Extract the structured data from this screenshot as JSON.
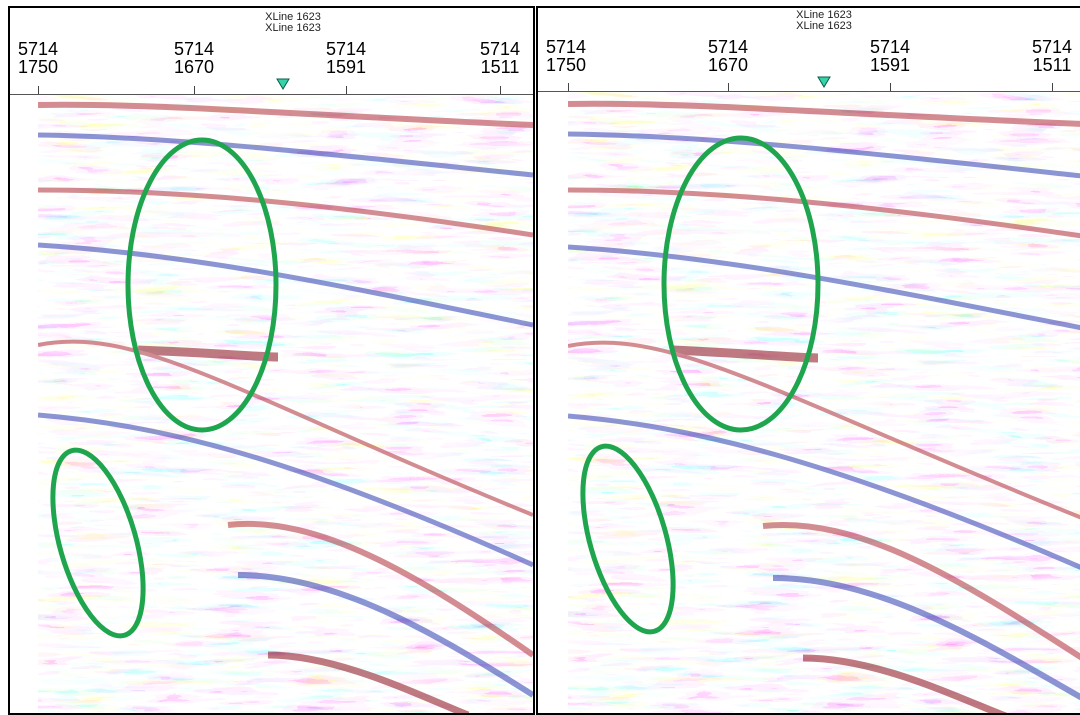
{
  "panels": [
    {
      "id": "left",
      "xline_labels": [
        "XLine 1623",
        "XLine 1623"
      ],
      "ticks": [
        {
          "top": "5714",
          "bottom": "1750"
        },
        {
          "top": "5714",
          "bottom": "1670"
        },
        {
          "top": "5714",
          "bottom": "1591"
        },
        {
          "top": "5714",
          "bottom": "1511"
        }
      ]
    },
    {
      "id": "right",
      "xline_labels": [
        "XLine 1623",
        "XLine 1623"
      ],
      "ticks": [
        {
          "top": "5714",
          "bottom": "1750"
        },
        {
          "top": "5714",
          "bottom": "1670"
        },
        {
          "top": "5714",
          "bottom": "1591"
        },
        {
          "top": "5714",
          "bottom": "1511"
        }
      ]
    }
  ],
  "colors": {
    "positive": "#b0313a",
    "negative": "#2f3fb0",
    "neutral": "#ffffff",
    "annotation": "#1fa54e",
    "marker": "#34d3a8"
  },
  "icons": {
    "position_marker": "inverted-triangle-marker",
    "annotation": "ellipse-highlight"
  }
}
